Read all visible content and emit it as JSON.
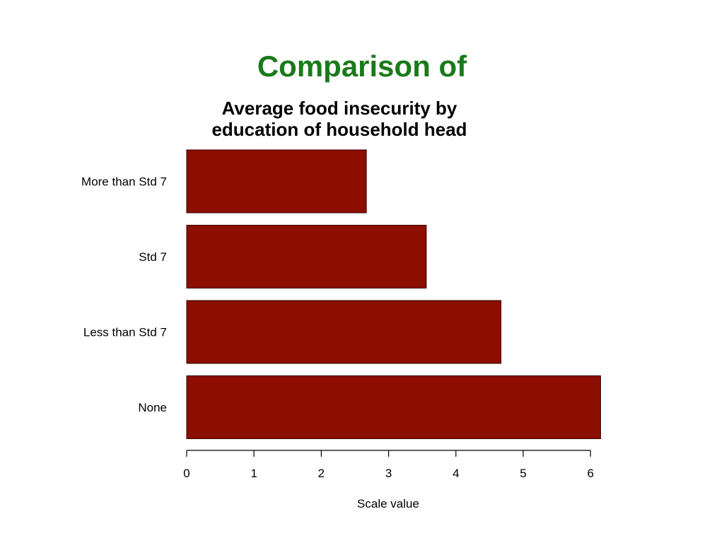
{
  "slide": {
    "title": "Comparison of",
    "title_color": "#1a7a1a"
  },
  "chart_data": {
    "type": "bar",
    "orientation": "horizontal",
    "title_lines": [
      "Average food insecurity by",
      "education of household head"
    ],
    "categories": [
      "More than Std 7",
      "Std 7",
      "Less than Std 7",
      "None"
    ],
    "values": [
      2.67,
      3.56,
      4.67,
      6.15
    ],
    "xlabel": "Scale value",
    "ylabel": "",
    "xlim": [
      0,
      6.2
    ],
    "xticks": [
      0,
      1,
      2,
      3,
      4,
      5,
      6
    ],
    "bar_color": "#8b0e00",
    "grid": false,
    "legend": "none"
  }
}
